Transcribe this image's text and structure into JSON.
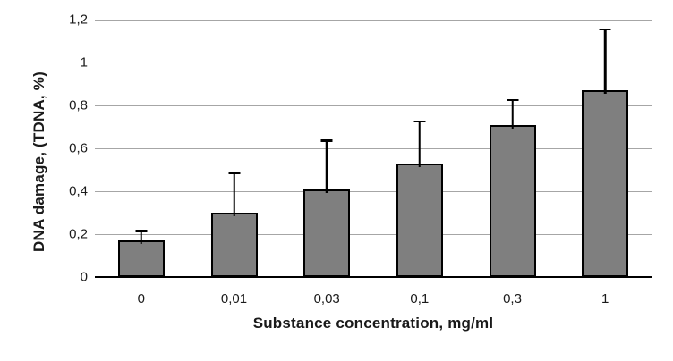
{
  "chart_data": {
    "type": "bar",
    "title": "",
    "xlabel": "Substance concentration, mg/ml",
    "ylabel": "DNA damage, (TDNA, %)",
    "categories": [
      "0",
      "0,01",
      "0,03",
      "0,1",
      "0,3",
      "1"
    ],
    "series": [
      {
        "name": "DNA damage",
        "values": [
          0.17,
          0.3,
          0.41,
          0.53,
          0.71,
          0.87
        ],
        "error_upper": [
          0.05,
          0.19,
          0.23,
          0.2,
          0.12,
          0.29
        ]
      }
    ],
    "ylim": [
      0,
      1.2
    ],
    "ytick_values": [
      0,
      0.2,
      0.4,
      0.6,
      0.8,
      1.0,
      1.2
    ],
    "ytick_labels": [
      "0",
      "0,2",
      "0,4",
      "0,6",
      "0,8",
      "1",
      "1,2"
    ],
    "grid": "horizontal",
    "legend": "none",
    "decimal_separator": ",",
    "colors": {
      "bar_fill": "#7f7f7f",
      "bar_border": "#000000",
      "error_bar": "#000000",
      "gridline": "#a6a6a6",
      "axis_line": "#000000",
      "text": "#1a1a1a"
    }
  }
}
